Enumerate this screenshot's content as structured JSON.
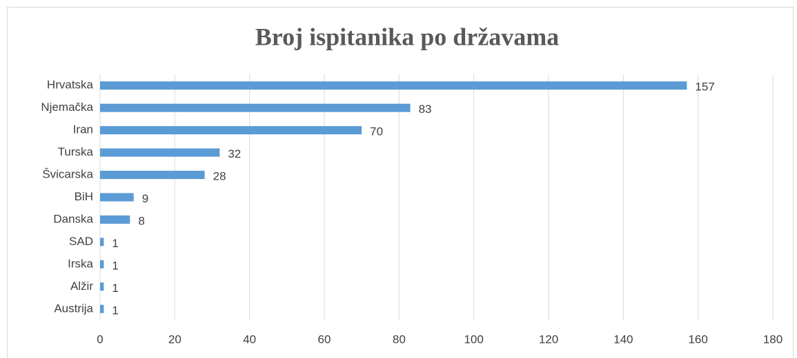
{
  "chart_data": {
    "type": "bar",
    "orientation": "horizontal",
    "title": "Broj ispitanika po državama",
    "categories": [
      "Hrvatska",
      "Njemačka",
      "Iran",
      "Turska",
      "Švicarska",
      "BiH",
      "Danska",
      "SAD",
      "Irska",
      "Alžir",
      "Austrija"
    ],
    "values": [
      157,
      83,
      70,
      32,
      28,
      9,
      8,
      1,
      1,
      1,
      1
    ],
    "color": "#5b9bd5",
    "xlim": [
      0,
      180
    ],
    "xticks": [
      0,
      20,
      40,
      60,
      80,
      100,
      120,
      140,
      160,
      180
    ],
    "grid": true
  }
}
